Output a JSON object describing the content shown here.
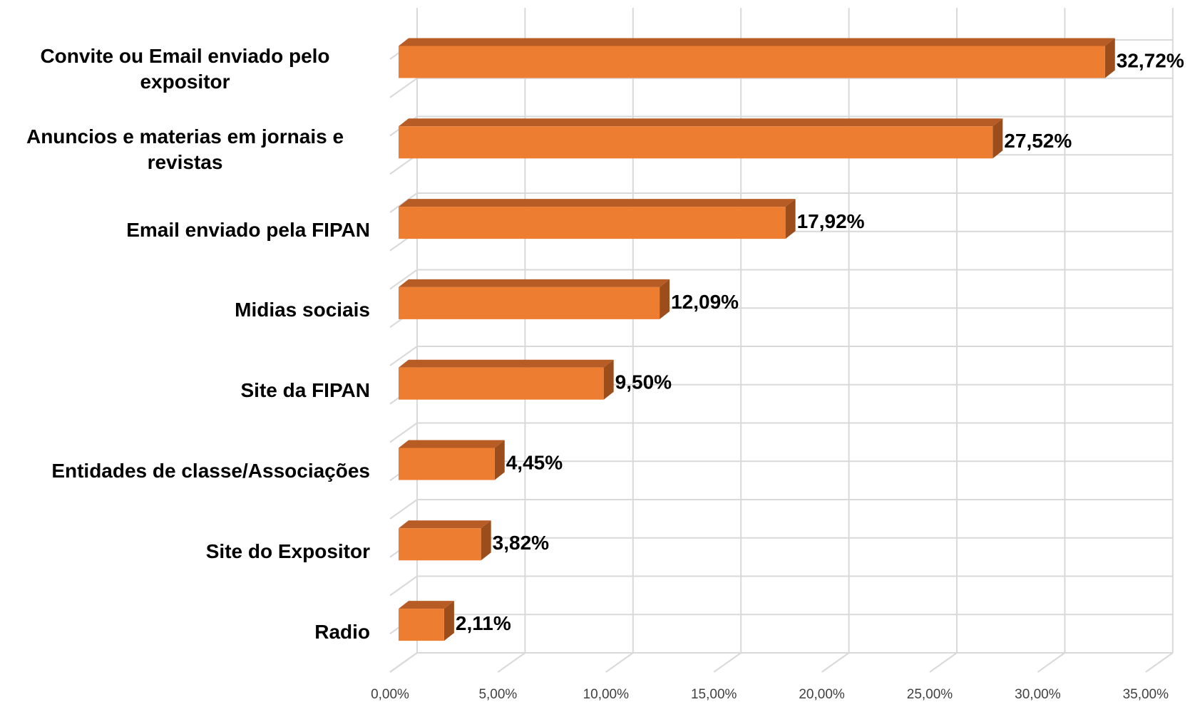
{
  "chart_data": {
    "type": "bar3d_horizontal",
    "categories": [
      "Convite ou Email enviado pelo expositor",
      "Anuncios e materias em jornais e revistas",
      "Email enviado pela FIPAN",
      "Midias sociais",
      "Site da FIPAN",
      "Entidades de classe/Associações",
      "Site do Expositor",
      "Radio"
    ],
    "values": [
      32.72,
      27.52,
      17.92,
      12.09,
      9.5,
      4.45,
      3.82,
      2.11
    ],
    "value_labels": [
      "32,72%",
      "27,52%",
      "17,92%",
      "12,09%",
      "9,50%",
      "4,45%",
      "3,82%",
      "2,11%"
    ],
    "color": "#ed7d31",
    "xlim": [
      0,
      35
    ],
    "xticks": [
      {
        "value": 0,
        "label": "0,00%"
      },
      {
        "value": 5,
        "label": "5,00%"
      },
      {
        "value": 10,
        "label": "10,00%"
      },
      {
        "value": 15,
        "label": "15,00%"
      },
      {
        "value": 20,
        "label": "20,00%"
      },
      {
        "value": 25,
        "label": "25,00%"
      },
      {
        "value": 30,
        "label": "30,00%"
      },
      {
        "value": 35,
        "label": "35,00%"
      }
    ],
    "grid": true
  }
}
